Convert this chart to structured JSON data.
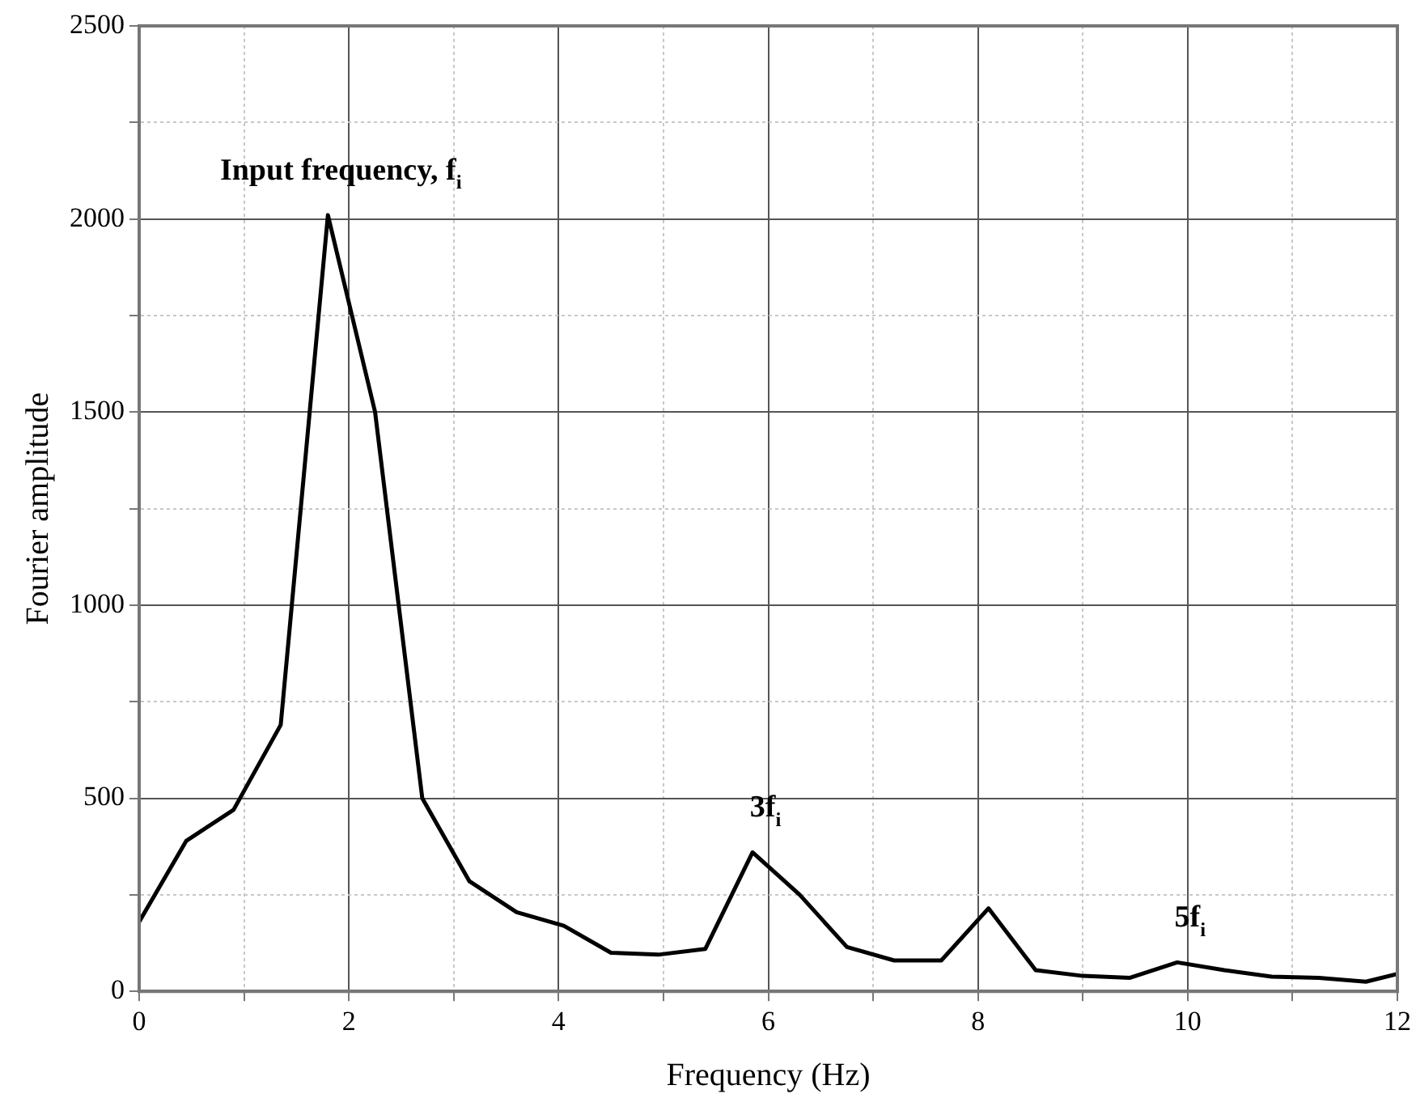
{
  "chart_data": {
    "type": "line",
    "xlabel": "Frequency (Hz)",
    "ylabel": "Fourier amplitude",
    "x": [
      0,
      0.45,
      0.9,
      1.35,
      1.8,
      2.25,
      2.7,
      3.15,
      3.6,
      4.05,
      4.5,
      4.95,
      5.4,
      5.85,
      6.3,
      6.75,
      7.2,
      7.65,
      8.1,
      8.55,
      9.0,
      9.45,
      9.9,
      10.35,
      10.8,
      11.25,
      11.7,
      12
    ],
    "series": [
      {
        "color": "#000000",
        "values": [
          180,
          390,
          470,
          690,
          2010,
          1500,
          500,
          285,
          205,
          170,
          100,
          95,
          110,
          360,
          250,
          115,
          80,
          80,
          215,
          55,
          40,
          35,
          75,
          55,
          38,
          35,
          25,
          45
        ]
      }
    ],
    "xlim": [
      0,
      12
    ],
    "xticks": [
      0,
      {
        "value": 1,
        "label": null
      },
      2,
      {
        "value": 3,
        "label": null
      },
      4,
      {
        "value": 5,
        "label": null
      },
      6,
      {
        "value": 7,
        "label": null
      },
      8,
      {
        "value": 9,
        "label": null
      },
      10,
      {
        "value": 11,
        "label": null
      },
      12
    ],
    "ylim": [
      0,
      2500
    ],
    "yticks": [
      0,
      {
        "value": 250,
        "label": null
      },
      500,
      {
        "value": 750,
        "label": null
      },
      1000,
      {
        "value": 1250,
        "label": null
      },
      1500,
      {
        "value": 1750,
        "label": null
      },
      2000,
      {
        "value": 2250,
        "label": null
      },
      2500
    ],
    "grid": true,
    "legend": false,
    "marker": "none",
    "line_style": "solid",
    "annotations": [
      {
        "text": "Input frequency, f$_{i}$",
        "x": 1.8,
        "y": 2010
      },
      {
        "text": "3f$_{i}$",
        "x": 5.85,
        "y": 360
      },
      {
        "text": "5f$_{i}$",
        "x": 9.9,
        "y": 75
      }
    ]
  }
}
